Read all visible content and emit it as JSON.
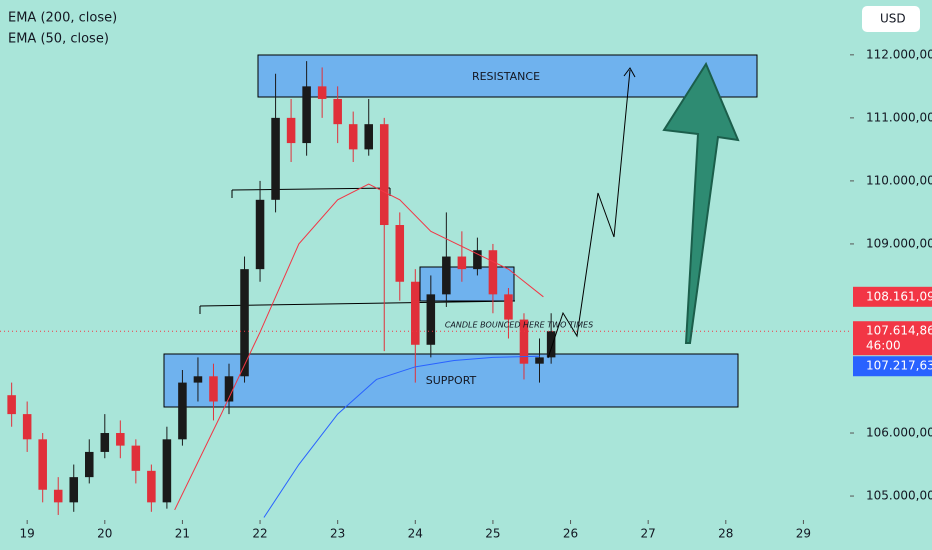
{
  "chart_data": {
    "type": "candlestick",
    "currency": "USD",
    "xlim": [
      18.65,
      29.6
    ],
    "xticks": [
      19,
      20,
      21,
      22,
      23,
      24,
      25,
      26,
      27,
      28,
      29
    ],
    "ylim": [
      104620,
      112870
    ],
    "yticks": [
      {
        "value": 105000,
        "label": "105.000,00"
      },
      {
        "value": 106000,
        "label": "106.000,00"
      },
      {
        "value": 109000,
        "label": "109.000,00"
      },
      {
        "value": 110000,
        "label": "110.000,00"
      },
      {
        "value": 111000,
        "label": "111.000,00"
      },
      {
        "value": 112000,
        "label": "112.000,00"
      }
    ],
    "up_color": "#1a1a1a",
    "down_color": "#e0303a",
    "candles": {
      "x": [
        18.8,
        19.0,
        19.2,
        19.4,
        19.6,
        19.8,
        20.0,
        20.2,
        20.4,
        20.6,
        20.8,
        21.0,
        21.2,
        21.4,
        21.6,
        21.8,
        22.0,
        22.2,
        22.4,
        22.6,
        22.8,
        23.0,
        23.2,
        23.4,
        23.6,
        23.8,
        24.0,
        24.2,
        24.4,
        24.6,
        24.8,
        25.0,
        25.2,
        25.4,
        25.6,
        25.75
      ],
      "open": [
        106600,
        106300,
        105900,
        105100,
        104900,
        105300,
        105700,
        106000,
        105800,
        105400,
        104900,
        105900,
        106800,
        106900,
        106500,
        106900,
        108600,
        109700,
        111000,
        110600,
        111500,
        111300,
        110900,
        110500,
        110900,
        109300,
        108400,
        107400,
        108200,
        108800,
        108600,
        108900,
        108200,
        107800,
        107100,
        107200
      ],
      "high": [
        106800,
        106500,
        106000,
        105300,
        105500,
        105900,
        106300,
        106200,
        105900,
        105500,
        106100,
        107000,
        107200,
        107100,
        107100,
        108800,
        110000,
        111700,
        111300,
        111900,
        111800,
        111500,
        111100,
        111300,
        111000,
        109500,
        108600,
        108500,
        109500,
        109200,
        109100,
        109000,
        108300,
        107900,
        107500,
        107900
      ],
      "low": [
        106100,
        105700,
        104900,
        104700,
        104750,
        105200,
        105600,
        105600,
        105200,
        104750,
        104800,
        105800,
        106500,
        106200,
        106300,
        106800,
        108400,
        109500,
        110300,
        110400,
        111000,
        110600,
        110300,
        110400,
        107300,
        108100,
        106800,
        107200,
        108000,
        108400,
        108500,
        107900,
        107500,
        106850,
        106800,
        107100
      ],
      "close": [
        106300,
        105900,
        105100,
        104900,
        105300,
        105700,
        106000,
        105800,
        105400,
        104900,
        105900,
        106800,
        106900,
        106500,
        106900,
        108600,
        109700,
        111000,
        110600,
        111500,
        111300,
        110900,
        110500,
        110900,
        109300,
        108400,
        107400,
        108200,
        108800,
        108600,
        108900,
        108200,
        107800,
        107100,
        107200,
        107615
      ]
    },
    "series": [
      {
        "name": "EMA (200, close)",
        "color": "#2962ff",
        "x": [
          22.05,
          22.5,
          23.0,
          23.5,
          24.0,
          24.5,
          25.0,
          25.6
        ],
        "values": [
          104660,
          105500,
          106300,
          106850,
          107050,
          107150,
          107200,
          107217
        ]
      },
      {
        "name": "EMA (50, close)",
        "color": "#f23645",
        "x": [
          20.9,
          21.5,
          22.0,
          22.5,
          23.0,
          23.4,
          23.8,
          24.2,
          24.7,
          25.2,
          25.65
        ],
        "values": [
          104780,
          106300,
          107600,
          109000,
          109700,
          109950,
          109700,
          109200,
          108900,
          108600,
          108161
        ]
      }
    ],
    "price_tags": [
      {
        "value": 108161.09,
        "label": "108.161,09",
        "color": "#f23645"
      },
      {
        "value": 107614.86,
        "label": "107.614,86",
        "color": "#f23645",
        "countdown": "46:00"
      },
      {
        "value": 107217.63,
        "label": "107.217,63",
        "color": "#2962ff"
      }
    ],
    "annotations": {
      "resistance": "RESISTANCE",
      "support": "SUPPORT",
      "note": "CANDLE BOUNCED HERE TWO TIMES"
    }
  }
}
